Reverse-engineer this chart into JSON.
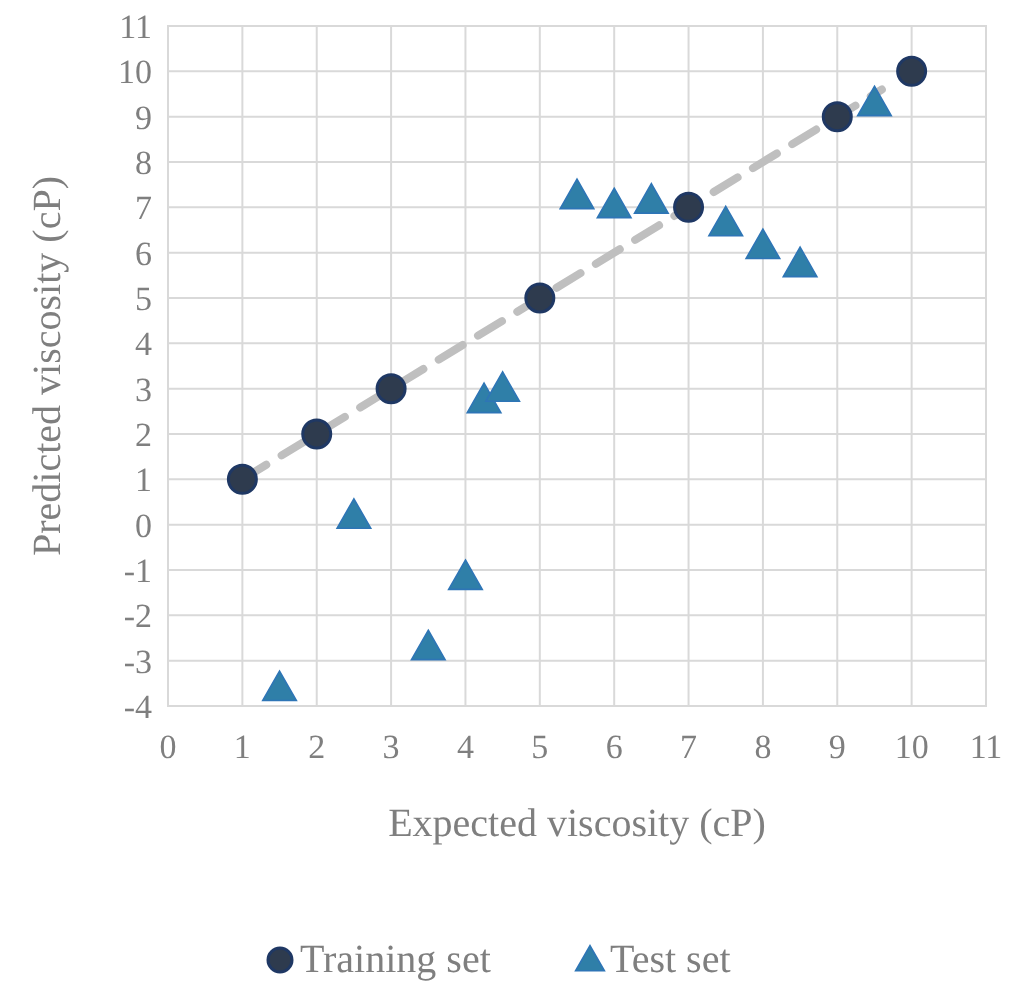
{
  "chart_data": {
    "type": "scatter",
    "xlabel": "Expected viscosity (cP)",
    "ylabel": "Predicted viscosity (cP)",
    "xlim": [
      0,
      11
    ],
    "xticks": [
      0,
      1,
      2,
      3,
      4,
      5,
      6,
      7,
      8,
      9,
      10,
      11
    ],
    "ylim": [
      -4,
      11
    ],
    "yticks": [
      -4,
      -3,
      -2,
      -1,
      0,
      1,
      2,
      3,
      4,
      5,
      6,
      7,
      8,
      9,
      10,
      11
    ],
    "grid": true,
    "legend": "bottom",
    "series": [
      {
        "type": "line",
        "color": "#bfbfbf",
        "line_style": "dashed",
        "marker": "none",
        "x": [
          1,
          9.6
        ],
        "values": [
          1,
          9.6
        ]
      },
      {
        "name": "Training set",
        "color": "#2e3b4e",
        "marker": "circle",
        "x": [
          1,
          2,
          3,
          5,
          7,
          9,
          10
        ],
        "values": [
          1,
          2,
          3,
          5,
          7,
          9,
          10
        ]
      },
      {
        "name": "Test set",
        "color": "#2f7fa8",
        "marker": "triangle",
        "x": [
          1.5,
          2.5,
          3.5,
          4,
          4.25,
          4.5,
          5.5,
          6,
          6.5,
          7.5,
          8,
          8.5,
          9.5
        ],
        "values": [
          -3.6,
          0.2,
          -2.7,
          -1.15,
          2.75,
          3.0,
          7.25,
          7.05,
          7.15,
          6.65,
          6.15,
          5.75,
          9.3
        ]
      }
    ]
  }
}
